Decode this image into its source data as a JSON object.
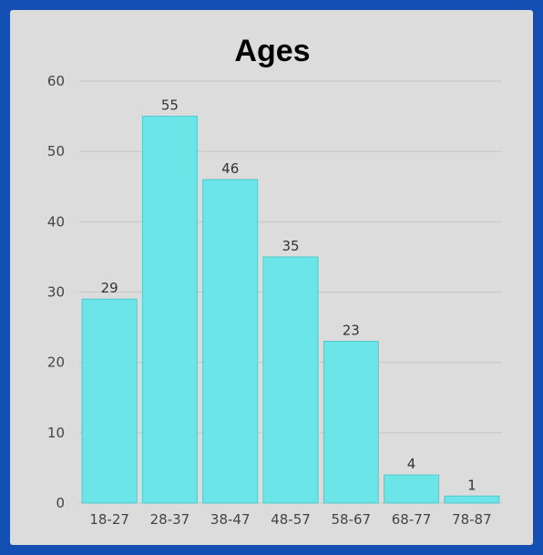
{
  "chart_data": {
    "type": "bar",
    "title": "Ages",
    "categories": [
      "18-27",
      "28-37",
      "38-47",
      "48-57",
      "58-67",
      "68-77",
      "78-87"
    ],
    "values": [
      29,
      55,
      46,
      35,
      23,
      4,
      1
    ],
    "ylim": [
      0,
      60
    ],
    "yticks": [
      0,
      10,
      20,
      30,
      40,
      50,
      60
    ],
    "grid": true,
    "colors": {
      "bar": "#6ce5e8",
      "bar_edge": "#52c9cc",
      "grid": "#c6c6c6",
      "frame": "#1450b4",
      "background": "#dcdcdc"
    }
  }
}
